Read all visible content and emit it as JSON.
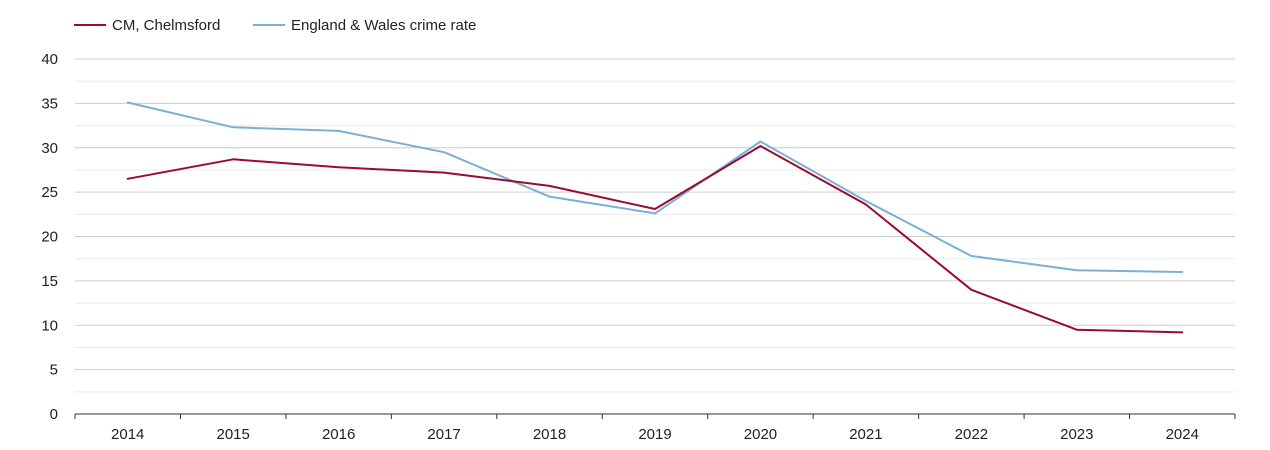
{
  "chart_data": {
    "type": "line",
    "title": "",
    "xlabel": "",
    "ylabel": "",
    "categories": [
      "2014",
      "2015",
      "2016",
      "2017",
      "2018",
      "2019",
      "2020",
      "2021",
      "2022",
      "2023",
      "2024"
    ],
    "ylim": [
      0,
      40
    ],
    "yticks": [
      0,
      5,
      10,
      15,
      20,
      25,
      30,
      35,
      40
    ],
    "grid": true,
    "legend_position": "top-left",
    "series": [
      {
        "name": "CM, Chelmsford",
        "color": "#9b0b2f",
        "values": [
          26.5,
          28.7,
          27.8,
          27.2,
          25.7,
          23.1,
          30.2,
          23.6,
          14.0,
          9.5,
          9.2
        ]
      },
      {
        "name": "England & Wales crime rate",
        "color": "#7ab0d4",
        "values": [
          35.1,
          32.3,
          31.9,
          29.5,
          24.5,
          22.6,
          30.7,
          24.0,
          17.8,
          16.2,
          16.0
        ]
      }
    ]
  }
}
